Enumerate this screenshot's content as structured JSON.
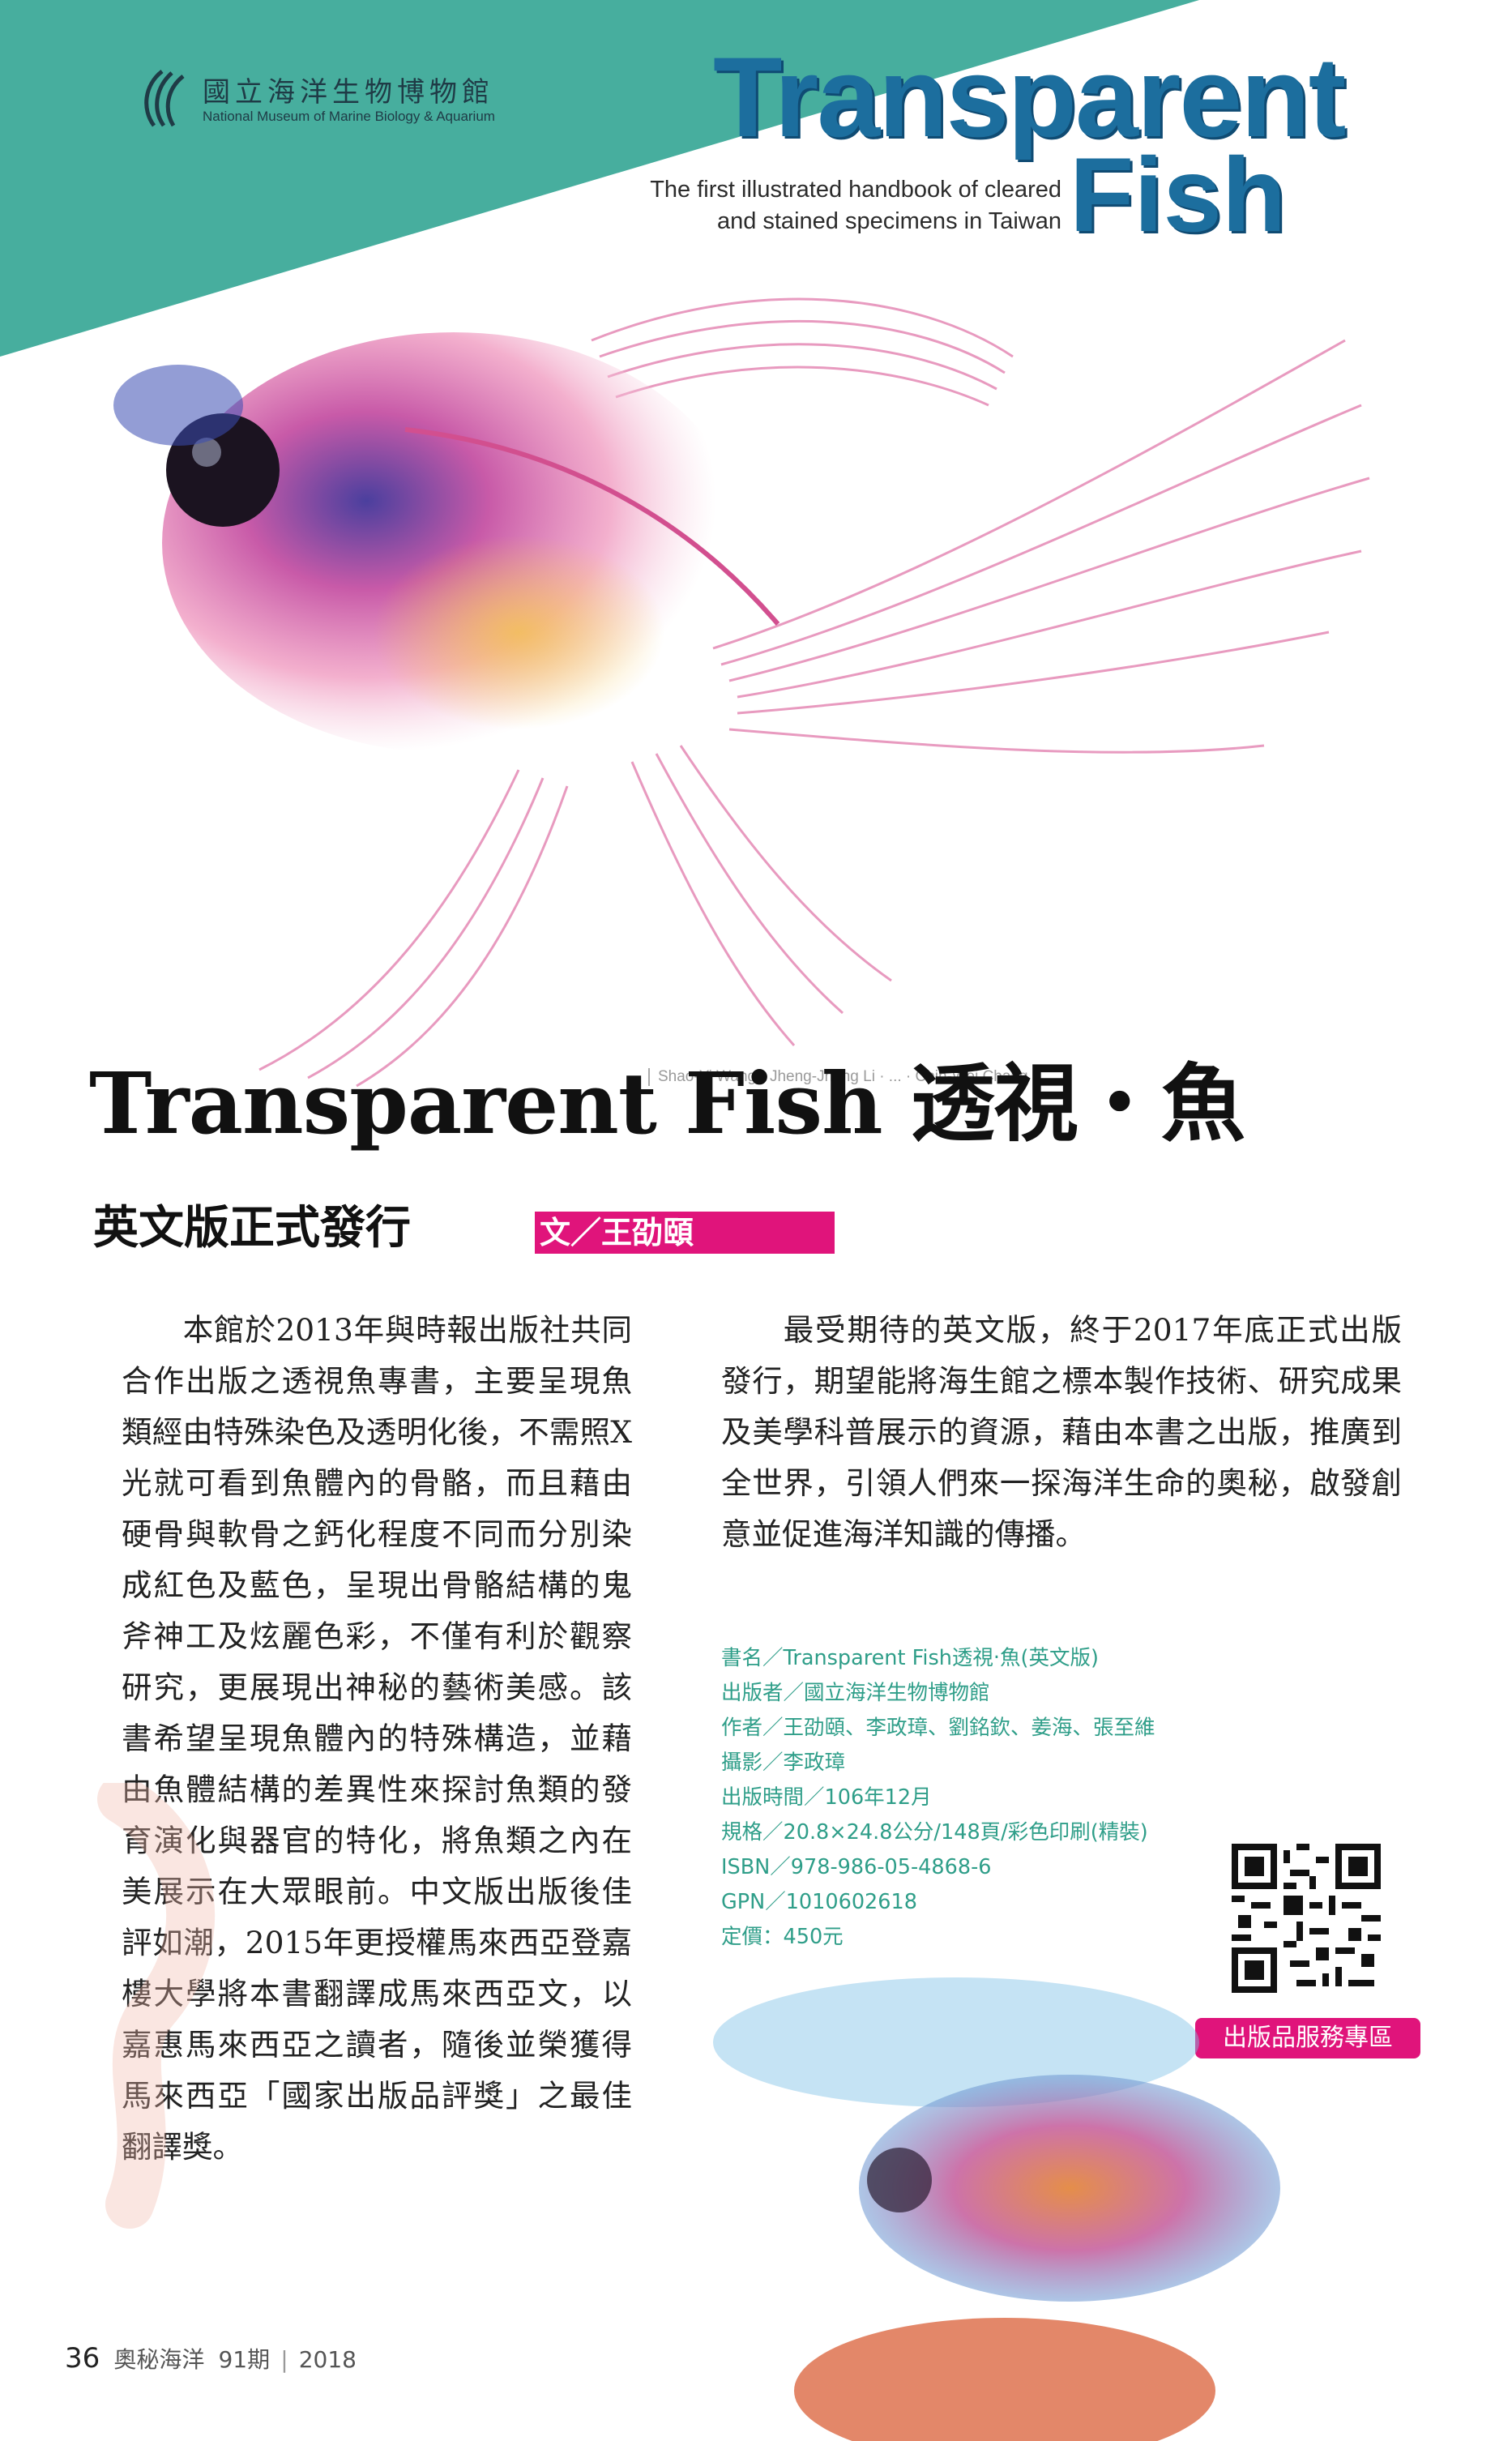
{
  "header": {
    "museum_name_cn": "國立海洋生物博物館",
    "museum_name_en": "National Museum of Marine Biology & Aquarium",
    "book_title_line1": "Transparent",
    "book_title_line2": "Fish",
    "tagline": "The first illustrated handbook of cleared and stained specimens in Taiwan",
    "teal_color": "#4fb3a4"
  },
  "photo_credit": "Shao-Yi Wang · Jheng-Jhang Li · ... · Chih-Wei Chang",
  "article": {
    "title": "Transparent Fish 透視‧魚",
    "subtitle": "英文版正式發行",
    "byline": "文／王劭頤",
    "accent_color": "#e0147b",
    "paragraph_left": "本館於2013年與時報出版社共同合作出版之透視魚專書，主要呈現魚類經由特殊染色及透明化後，不需照X光就可看到魚體內的骨骼，而且藉由硬骨與軟骨之鈣化程度不同而分別染成紅色及藍色，呈現出骨骼結構的鬼斧神工及炫麗色彩，不僅有利於觀察研究，更展現出神秘的藝術美感。該書希望呈現魚體內的特殊構造，並藉由魚體結構的差異性來探討魚類的發育演化與器官的特化，將魚類之內在美展示在大眾眼前。中文版出版後佳評如潮，2015年更授權馬來西亞登嘉樓大學將本書翻譯成馬來西亞文，以嘉惠馬來西亞之讀者，隨後並榮獲得馬來西亞「國家出版品評獎」之最佳翻譯獎。",
    "paragraph_right": "最受期待的英文版，終于2017年底正式出版發行，期望能將海生館之標本製作技術、研究成果及美學科普展示的資源，藉由本書之出版，推廣到全世界，引領人們來一探海洋生命的奧秘，啟發創意並促進海洋知識的傳播。"
  },
  "book_info": {
    "color": "#2f9e89",
    "items": [
      "書名／Transparent Fish透視‧魚(英文版)",
      "出版者／國立海洋生物博物館",
      "作者／王劭頤、李政璋、劉銘欽、姜海、張至維",
      "攝影／李政璋",
      "出版時間／106年12月",
      "規格／20.8×24.8公分/148頁/彩色印刷(精裝)",
      "ISBN／978-986-05-4868-6",
      "GPN／1010602618",
      "定價：450元"
    ]
  },
  "qr_icon": "qr-code-icon",
  "service_button": "出版品服務專區",
  "footer": {
    "page_number": "36",
    "magazine": "奧秘海洋",
    "issue": "91期",
    "separator": "|",
    "year": "2018"
  }
}
